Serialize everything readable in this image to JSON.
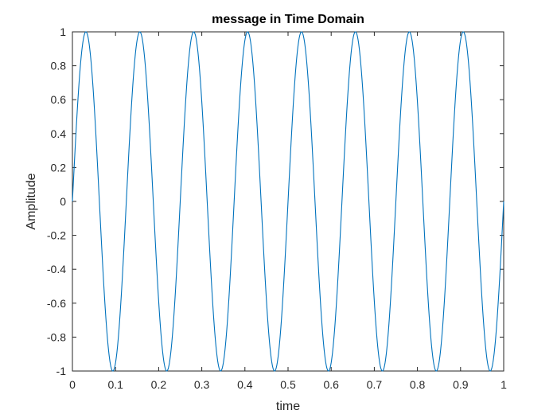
{
  "chart_data": {
    "type": "line",
    "title": "message in Time Domain",
    "xlabel": "time",
    "ylabel": "Amplitude",
    "xlim": [
      0,
      1
    ],
    "ylim": [
      -1,
      1
    ],
    "xticks": [
      0,
      0.1,
      0.2,
      0.3,
      0.4,
      0.5,
      0.6,
      0.7,
      0.8,
      0.9,
      1
    ],
    "xtick_labels": [
      "0",
      "0.1",
      "0.2",
      "0.3",
      "0.4",
      "0.5",
      "0.6",
      "0.7",
      "0.8",
      "0.9",
      "1"
    ],
    "yticks": [
      -1,
      -0.8,
      -0.6,
      -0.4,
      -0.2,
      0,
      0.2,
      0.4,
      0.6,
      0.8,
      1
    ],
    "ytick_labels": [
      "-1",
      "-0.8",
      "-0.6",
      "-0.4",
      "-0.2",
      "0",
      "0.2",
      "0.4",
      "0.6",
      "0.8",
      "1"
    ],
    "grid": false,
    "series": [
      {
        "function": "sin(2*pi*f*t)",
        "frequency_hz": 8,
        "amplitude": 1,
        "t_range": [
          0,
          1
        ],
        "color": "#0072BD"
      }
    ]
  }
}
